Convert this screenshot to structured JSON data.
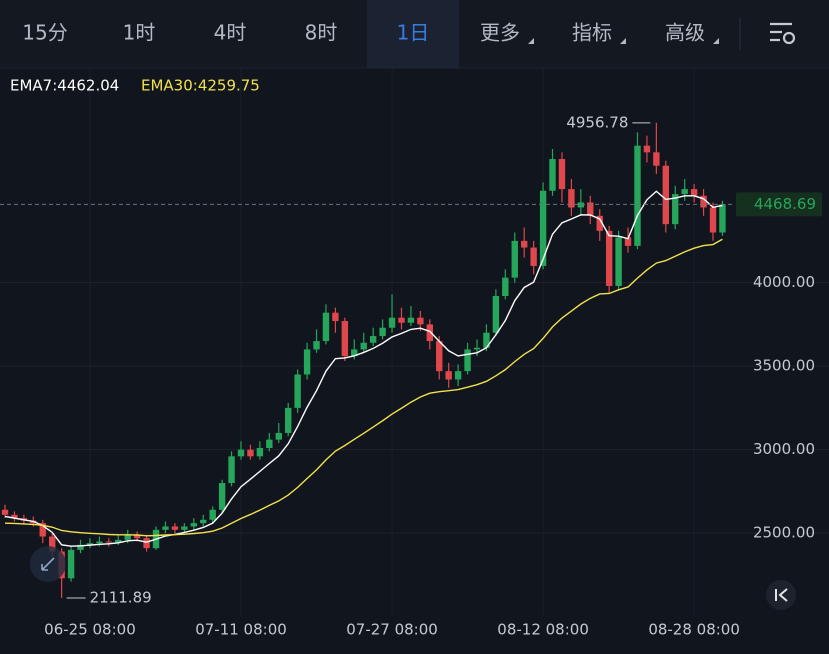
{
  "chart_data": {
    "type": "candlestick",
    "tabs": [
      "15分",
      "1时",
      "4时",
      "8时",
      "1日",
      "更多",
      "指标",
      "高级"
    ],
    "active_tab": 4,
    "categories": [
      null,
      null,
      null,
      null,
      null,
      null,
      null,
      null,
      null,
      "06-25 08:00",
      null,
      null,
      null,
      null,
      null,
      null,
      null,
      null,
      null,
      null,
      null,
      null,
      null,
      null,
      null,
      "07-11 08:00",
      null,
      null,
      null,
      null,
      null,
      null,
      null,
      null,
      null,
      null,
      null,
      null,
      null,
      null,
      null,
      "07-27 08:00",
      null,
      null,
      null,
      null,
      null,
      null,
      null,
      null,
      null,
      null,
      null,
      null,
      null,
      null,
      null,
      "08-12 08:00",
      null,
      null,
      null,
      null,
      null,
      null,
      null,
      null,
      null,
      null,
      null,
      null,
      null,
      null,
      null,
      "08-28 08:00",
      null,
      null,
      null
    ],
    "open": [
      2640,
      2610,
      2590,
      2575,
      2560,
      2480,
      2390,
      2230,
      2400,
      2430,
      2440,
      2450,
      2445,
      2460,
      2490,
      2470,
      2410,
      2520,
      2540,
      2520,
      2540,
      2560,
      2580,
      2640,
      2800,
      2960,
      3000,
      2960,
      3010,
      3060,
      3100,
      3250,
      3450,
      3600,
      3650,
      3820,
      3770,
      3560,
      3600,
      3640,
      3680,
      3730,
      3790,
      3760,
      3790,
      3750,
      3650,
      3470,
      3420,
      3470,
      3600,
      3610,
      3700,
      3920,
      4030,
      4250,
      4210,
      4100,
      4550,
      4740,
      4560,
      4450,
      4480,
      4400,
      4310,
      3980,
      4270,
      4220,
      4820,
      4780,
      4700,
      4350,
      4530,
      4560,
      4520,
      4450,
      4300
    ],
    "high": [
      2670,
      2630,
      2610,
      2600,
      2580,
      2500,
      2410,
      2420,
      2460,
      2470,
      2480,
      2470,
      2490,
      2520,
      2510,
      2490,
      2540,
      2570,
      2560,
      2560,
      2590,
      2610,
      2660,
      2820,
      2990,
      3050,
      3030,
      3050,
      3100,
      3160,
      3280,
      3480,
      3640,
      3720,
      3870,
      3850,
      3790,
      3660,
      3700,
      3730,
      3780,
      3930,
      3850,
      3860,
      3830,
      3780,
      3680,
      3520,
      3510,
      3640,
      3660,
      3750,
      3960,
      4080,
      4300,
      4330,
      4250,
      4600,
      4800,
      4780,
      4620,
      4560,
      4520,
      4440,
      4340,
      4310,
      4330,
      4900,
      4880,
      4956.78,
      4730,
      4580,
      4620,
      4590,
      4560,
      4480,
      4490
    ],
    "low": [
      2590,
      2570,
      2550,
      2540,
      2440,
      2360,
      2111.89,
      2210,
      2380,
      2410,
      2420,
      2420,
      2430,
      2440,
      2450,
      2390,
      2400,
      2500,
      2500,
      2500,
      2520,
      2540,
      2560,
      2620,
      2780,
      2940,
      2940,
      2940,
      2990,
      3040,
      3080,
      3220,
      3420,
      3580,
      3630,
      3700,
      3530,
      3540,
      3580,
      3620,
      3660,
      3700,
      3720,
      3740,
      3710,
      3600,
      3420,
      3370,
      3380,
      3450,
      3560,
      3590,
      3680,
      3900,
      4000,
      4150,
      4050,
      4080,
      4520,
      4480,
      4400,
      4400,
      4350,
      4250,
      3940,
      3960,
      4180,
      4200,
      4720,
      4650,
      4300,
      4320,
      4490,
      4480,
      4400,
      4250,
      4280
    ],
    "close": [
      2610,
      2590,
      2575,
      2560,
      2480,
      2390,
      2230,
      2400,
      2430,
      2440,
      2450,
      2445,
      2460,
      2490,
      2470,
      2410,
      2520,
      2540,
      2520,
      2540,
      2560,
      2580,
      2640,
      2800,
      2960,
      3000,
      2960,
      3010,
      3060,
      3100,
      3250,
      3450,
      3600,
      3650,
      3820,
      3770,
      3560,
      3600,
      3640,
      3680,
      3730,
      3790,
      3760,
      3790,
      3750,
      3650,
      3470,
      3420,
      3470,
      3600,
      3610,
      3700,
      3920,
      4030,
      4250,
      4210,
      4100,
      4550,
      4740,
      4560,
      4450,
      4480,
      4400,
      4310,
      3980,
      4270,
      4220,
      4820,
      4780,
      4700,
      4350,
      4530,
      4560,
      4520,
      4450,
      4300,
      4468.69
    ],
    "up_color": "#26a65b",
    "down_color": "#e0474c",
    "series": [
      {
        "name": "EMA7:4462.04",
        "color": "#ffffff",
        "values": [
          2600,
          2590,
          2580,
          2570,
          2545,
          2505,
          2430,
          2422,
          2424,
          2428,
          2433,
          2436,
          2442,
          2454,
          2458,
          2446,
          2464,
          2483,
          2492,
          2504,
          2518,
          2534,
          2560,
          2620,
          2705,
          2778,
          2823,
          2870,
          2917,
          2963,
          3035,
          3139,
          3254,
          3353,
          3470,
          3545,
          3549,
          3562,
          3582,
          3606,
          3637,
          3675,
          3696,
          3720,
          3727,
          3708,
          3649,
          3592,
          3561,
          3571,
          3580,
          3610,
          3688,
          3773,
          3892,
          3971,
          4003,
          4140,
          4290,
          4358,
          4381,
          4406,
          4405,
          4381,
          4281,
          4278,
          4263,
          4402,
          4496,
          4547,
          4498,
          4506,
          4520,
          4520,
          4502,
          4451,
          4462.04
        ]
      },
      {
        "name": "EMA30:4259.75",
        "color": "#f2e14c",
        "values": [
          2560,
          2558,
          2555,
          2552,
          2547,
          2536,
          2516,
          2508,
          2503,
          2499,
          2496,
          2492,
          2490,
          2490,
          2489,
          2484,
          2486,
          2489,
          2491,
          2494,
          2498,
          2503,
          2512,
          2531,
          2559,
          2588,
          2612,
          2638,
          2666,
          2693,
          2728,
          2774,
          2827,
          2879,
          2939,
          2991,
          3025,
          3062,
          3098,
          3135,
          3173,
          3213,
          3248,
          3284,
          3315,
          3338,
          3347,
          3353,
          3360,
          3374,
          3389,
          3409,
          3442,
          3479,
          3527,
          3571,
          3605,
          3666,
          3735,
          3788,
          3830,
          3872,
          3906,
          3932,
          3935,
          3957,
          3974,
          4027,
          4076,
          4117,
          4132,
          4158,
          4184,
          4206,
          4222,
          4228,
          4259.75
        ]
      }
    ],
    "ylim": [
      2010,
      5285
    ],
    "yticks": [
      {
        "value": 2500,
        "label": "2500.00"
      },
      {
        "value": 3000,
        "label": "3000.00"
      },
      {
        "value": 3500,
        "label": "3500.00"
      },
      {
        "value": 4000,
        "label": "4000.00"
      }
    ],
    "grid": true
  }
}
